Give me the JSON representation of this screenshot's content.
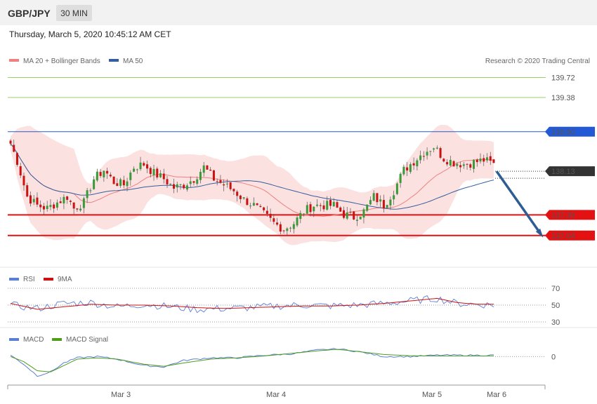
{
  "header": {
    "symbol": "GBP/JPY",
    "timeframe": "30 MIN",
    "datetime": "Thursday, March 5, 2020 10:45:12 AM CET"
  },
  "legend": {
    "ma20": "MA 20 + Bollinger Bands",
    "ma50": "MA 50",
    "credit": "Research © 2020 Trading Central"
  },
  "colors": {
    "ma20": "#f08080",
    "ma50": "#335f9e",
    "band_fill": "#fbd9d9",
    "up": "#3a9a3a",
    "down": "#cc1111",
    "resistance_green": "#9ccf6c",
    "resistance_blue": "#2459d6",
    "support_red": "#e31111",
    "rsi": "#5b7ed6",
    "rsi_ma": "#cc1111",
    "macd": "#5b7ed6",
    "macd_signal": "#4f9e1a"
  },
  "chart_data": [
    {
      "type": "candlestick",
      "levels": [
        {
          "value": 139.72,
          "label": "139.72",
          "color": "#9ccf6c",
          "style": "thin"
        },
        {
          "value": 139.38,
          "label": "139.38",
          "color": "#9ccf6c",
          "style": "thin"
        },
        {
          "value": 138.8,
          "label": "138.80",
          "color": "#2459d6",
          "style": "tag"
        },
        {
          "value": 138.13,
          "label": "138.13",
          "color": "#333333",
          "style": "current"
        },
        {
          "value": 137.39,
          "label": "137.39",
          "color": "#e31111",
          "style": "tag"
        },
        {
          "value": 137.04,
          "label": "137.04",
          "color": "#e31111",
          "style": "tag"
        }
      ],
      "ylim": [
        136.55,
        139.88
      ],
      "projection": {
        "from": 138.13,
        "to": 137.04
      },
      "x_labels": [
        "Mar 3",
        "Mar 4",
        "Mar 5",
        "Mar 6"
      ],
      "close_anchors": [
        [
          0,
          138.6
        ],
        [
          2,
          138.3
        ],
        [
          5,
          137.7
        ],
        [
          8,
          137.55
        ],
        [
          11,
          137.5
        ],
        [
          14,
          137.6
        ],
        [
          17,
          137.7
        ],
        [
          19,
          137.5
        ],
        [
          22,
          137.6
        ],
        [
          25,
          138.0
        ],
        [
          28,
          138.15
        ],
        [
          31,
          137.95
        ],
        [
          34,
          137.9
        ],
        [
          37,
          138.2
        ],
        [
          40,
          138.25
        ],
        [
          43,
          138.1
        ],
        [
          46,
          138.0
        ],
        [
          49,
          137.85
        ],
        [
          52,
          137.9
        ],
        [
          55,
          138.0
        ],
        [
          58,
          138.2
        ],
        [
          61,
          138.0
        ],
        [
          64,
          137.9
        ],
        [
          67,
          137.8
        ],
        [
          70,
          137.65
        ],
        [
          73,
          137.55
        ],
        [
          76,
          137.4
        ],
        [
          79,
          137.25
        ],
        [
          82,
          137.15
        ],
        [
          85,
          137.25
        ],
        [
          88,
          137.45
        ],
        [
          91,
          137.55
        ],
        [
          94,
          137.55
        ],
        [
          97,
          137.55
        ],
        [
          100,
          137.4
        ],
        [
          103,
          137.35
        ],
        [
          106,
          137.45
        ],
        [
          109,
          137.7
        ],
        [
          112,
          137.55
        ],
        [
          115,
          137.8
        ],
        [
          118,
          138.15
        ],
        [
          121,
          138.3
        ],
        [
          124,
          138.45
        ],
        [
          127,
          138.55
        ],
        [
          130,
          138.35
        ],
        [
          133,
          138.28
        ],
        [
          136,
          138.25
        ],
        [
          139,
          138.28
        ],
        [
          142,
          138.32
        ],
        [
          145,
          138.25
        ]
      ]
    },
    {
      "type": "line",
      "name": "RSI",
      "ticks": [
        70,
        50,
        30
      ],
      "ylim": [
        25,
        75
      ],
      "anchors": [
        [
          0,
          50
        ],
        [
          8,
          46
        ],
        [
          16,
          52
        ],
        [
          24,
          53
        ],
        [
          32,
          48
        ],
        [
          40,
          51
        ],
        [
          48,
          48
        ],
        [
          56,
          45
        ],
        [
          64,
          46
        ],
        [
          72,
          47
        ],
        [
          80,
          49
        ],
        [
          88,
          50
        ],
        [
          96,
          49
        ],
        [
          104,
          50
        ],
        [
          112,
          52
        ],
        [
          120,
          55
        ],
        [
          128,
          58
        ],
        [
          134,
          52
        ],
        [
          140,
          51
        ],
        [
          145,
          50
        ]
      ],
      "ma_anchors": [
        [
          0,
          52
        ],
        [
          8,
          45
        ],
        [
          16,
          48
        ],
        [
          24,
          51
        ],
        [
          32,
          50
        ],
        [
          40,
          50
        ],
        [
          48,
          49
        ],
        [
          56,
          47
        ],
        [
          64,
          46
        ],
        [
          72,
          47
        ],
        [
          80,
          48
        ],
        [
          88,
          49
        ],
        [
          96,
          49
        ],
        [
          104,
          50
        ],
        [
          112,
          52
        ],
        [
          120,
          55
        ],
        [
          128,
          58
        ],
        [
          134,
          53
        ],
        [
          140,
          51
        ],
        [
          145,
          51
        ]
      ]
    },
    {
      "type": "line",
      "name": "MACD",
      "ticks": [
        0
      ],
      "ylim": [
        -1,
        0.5
      ],
      "anchors": [
        [
          0,
          0.05
        ],
        [
          4,
          -0.3
        ],
        [
          8,
          -0.75
        ],
        [
          12,
          -0.6
        ],
        [
          16,
          -0.25
        ],
        [
          20,
          -0.05
        ],
        [
          26,
          0.0
        ],
        [
          32,
          -0.1
        ],
        [
          40,
          -0.35
        ],
        [
          46,
          -0.4
        ],
        [
          52,
          -0.15
        ],
        [
          60,
          -0.05
        ],
        [
          68,
          -0.05
        ],
        [
          76,
          0.05
        ],
        [
          84,
          0.1
        ],
        [
          92,
          0.25
        ],
        [
          98,
          0.3
        ],
        [
          104,
          0.2
        ],
        [
          112,
          0.0
        ],
        [
          120,
          0.0
        ],
        [
          128,
          0.05
        ]
      ],
      "signal_anchors": [
        [
          0,
          0.0
        ],
        [
          4,
          -0.2
        ],
        [
          8,
          -0.55
        ],
        [
          12,
          -0.6
        ],
        [
          16,
          -0.35
        ],
        [
          20,
          -0.1
        ],
        [
          26,
          -0.05
        ],
        [
          32,
          -0.1
        ],
        [
          40,
          -0.3
        ],
        [
          46,
          -0.38
        ],
        [
          52,
          -0.25
        ],
        [
          60,
          -0.1
        ],
        [
          68,
          -0.05
        ],
        [
          76,
          0.02
        ],
        [
          84,
          0.12
        ],
        [
          92,
          0.22
        ],
        [
          98,
          0.28
        ],
        [
          104,
          0.2
        ],
        [
          112,
          0.08
        ],
        [
          120,
          0.03
        ],
        [
          128,
          0.02
        ]
      ]
    }
  ]
}
